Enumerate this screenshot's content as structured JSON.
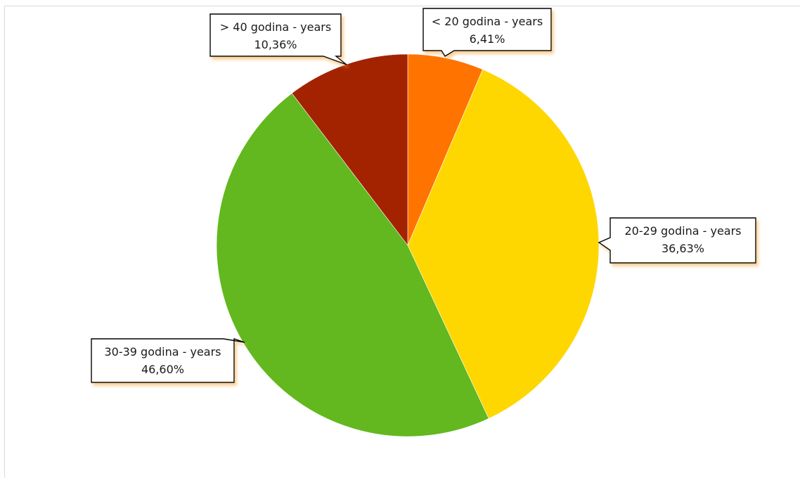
{
  "chart_data": {
    "type": "pie",
    "slices": [
      {
        "label": "< 20 godina - years",
        "value": 6.41,
        "value_label": "6,41%",
        "color": "#ff7300"
      },
      {
        "label": "20-29 godina - years",
        "value": 36.63,
        "value_label": "36,63%",
        "color": "#ffd700"
      },
      {
        "label": "30-39 godina - years",
        "value": 46.6,
        "value_label": "46,60%",
        "color": "#62b81e"
      },
      {
        "label": "> 40 godina - years",
        "value": 10.36,
        "value_label": "10,36%",
        "color": "#a32300"
      }
    ],
    "start_angle": "12 o'clock",
    "direction": "clockwise",
    "data_labels": "callouts",
    "legend": "none"
  }
}
